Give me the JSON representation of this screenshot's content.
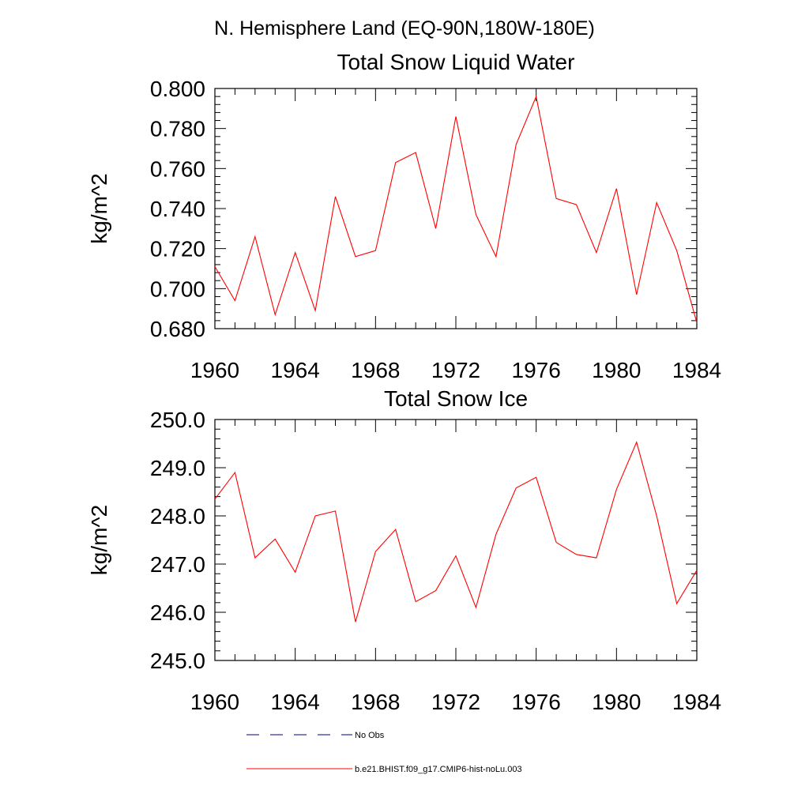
{
  "figure": {
    "title": "N. Hemisphere Land (EQ-90N,180W-180E)"
  },
  "chart_data": [
    {
      "type": "line",
      "title": "Total Snow Liquid Water",
      "xlabel": "",
      "ylabel": "kg/m^2",
      "xlim": [
        1960,
        1984
      ],
      "ylim": [
        0.68,
        0.8
      ],
      "x_ticks": [
        "1960",
        "1964",
        "1968",
        "1972",
        "1976",
        "1980",
        "1984"
      ],
      "y_ticks": [
        "0.680",
        "0.700",
        "0.720",
        "0.740",
        "0.760",
        "0.780",
        "0.800"
      ],
      "grid": false,
      "series": [
        {
          "name": "b.e21.BHIST.f09_g17.CMIP6-hist-noLu.003",
          "color": "#ff0000",
          "x": [
            1960,
            1961,
            1962,
            1963,
            1964,
            1965,
            1966,
            1967,
            1968,
            1969,
            1970,
            1971,
            1972,
            1973,
            1974,
            1975,
            1976,
            1977,
            1978,
            1979,
            1980,
            1981,
            1982,
            1983,
            1984
          ],
          "y": [
            0.711,
            0.694,
            0.726,
            0.687,
            0.718,
            0.689,
            0.746,
            0.716,
            0.719,
            0.763,
            0.768,
            0.73,
            0.786,
            0.737,
            0.716,
            0.772,
            0.796,
            0.745,
            0.742,
            0.718,
            0.75,
            0.697,
            0.743,
            0.719,
            0.683
          ]
        }
      ]
    },
    {
      "type": "line",
      "title": "Total Snow Ice",
      "xlabel": "",
      "ylabel": "kg/m^2",
      "xlim": [
        1960,
        1984
      ],
      "ylim": [
        245.0,
        250.0
      ],
      "x_ticks": [
        "1960",
        "1964",
        "1968",
        "1972",
        "1976",
        "1980",
        "1984"
      ],
      "y_ticks": [
        "245.0",
        "246.0",
        "247.0",
        "248.0",
        "249.0",
        "250.0"
      ],
      "grid": false,
      "series": [
        {
          "name": "b.e21.BHIST.f09_g17.CMIP6-hist-noLu.003",
          "color": "#ff0000",
          "x": [
            1960,
            1961,
            1962,
            1963,
            1964,
            1965,
            1966,
            1967,
            1968,
            1969,
            1970,
            1971,
            1972,
            1973,
            1974,
            1975,
            1976,
            1977,
            1978,
            1979,
            1980,
            1981,
            1982,
            1983,
            1984
          ],
          "y": [
            248.35,
            248.9,
            247.13,
            247.52,
            246.83,
            248.0,
            248.1,
            245.8,
            247.26,
            247.72,
            246.22,
            246.45,
            247.17,
            246.1,
            247.62,
            248.58,
            248.8,
            247.45,
            247.2,
            247.13,
            248.55,
            249.53,
            248.0,
            246.18,
            246.87
          ]
        }
      ]
    }
  ],
  "legend": {
    "placement": "bottom",
    "items": [
      {
        "label": "No Obs",
        "style": "dashed",
        "color": "#000080"
      },
      {
        "label": "b.e21.BHIST.f09_g17.CMIP6-hist-noLu.003",
        "style": "solid",
        "color": "#ff0000"
      }
    ]
  }
}
